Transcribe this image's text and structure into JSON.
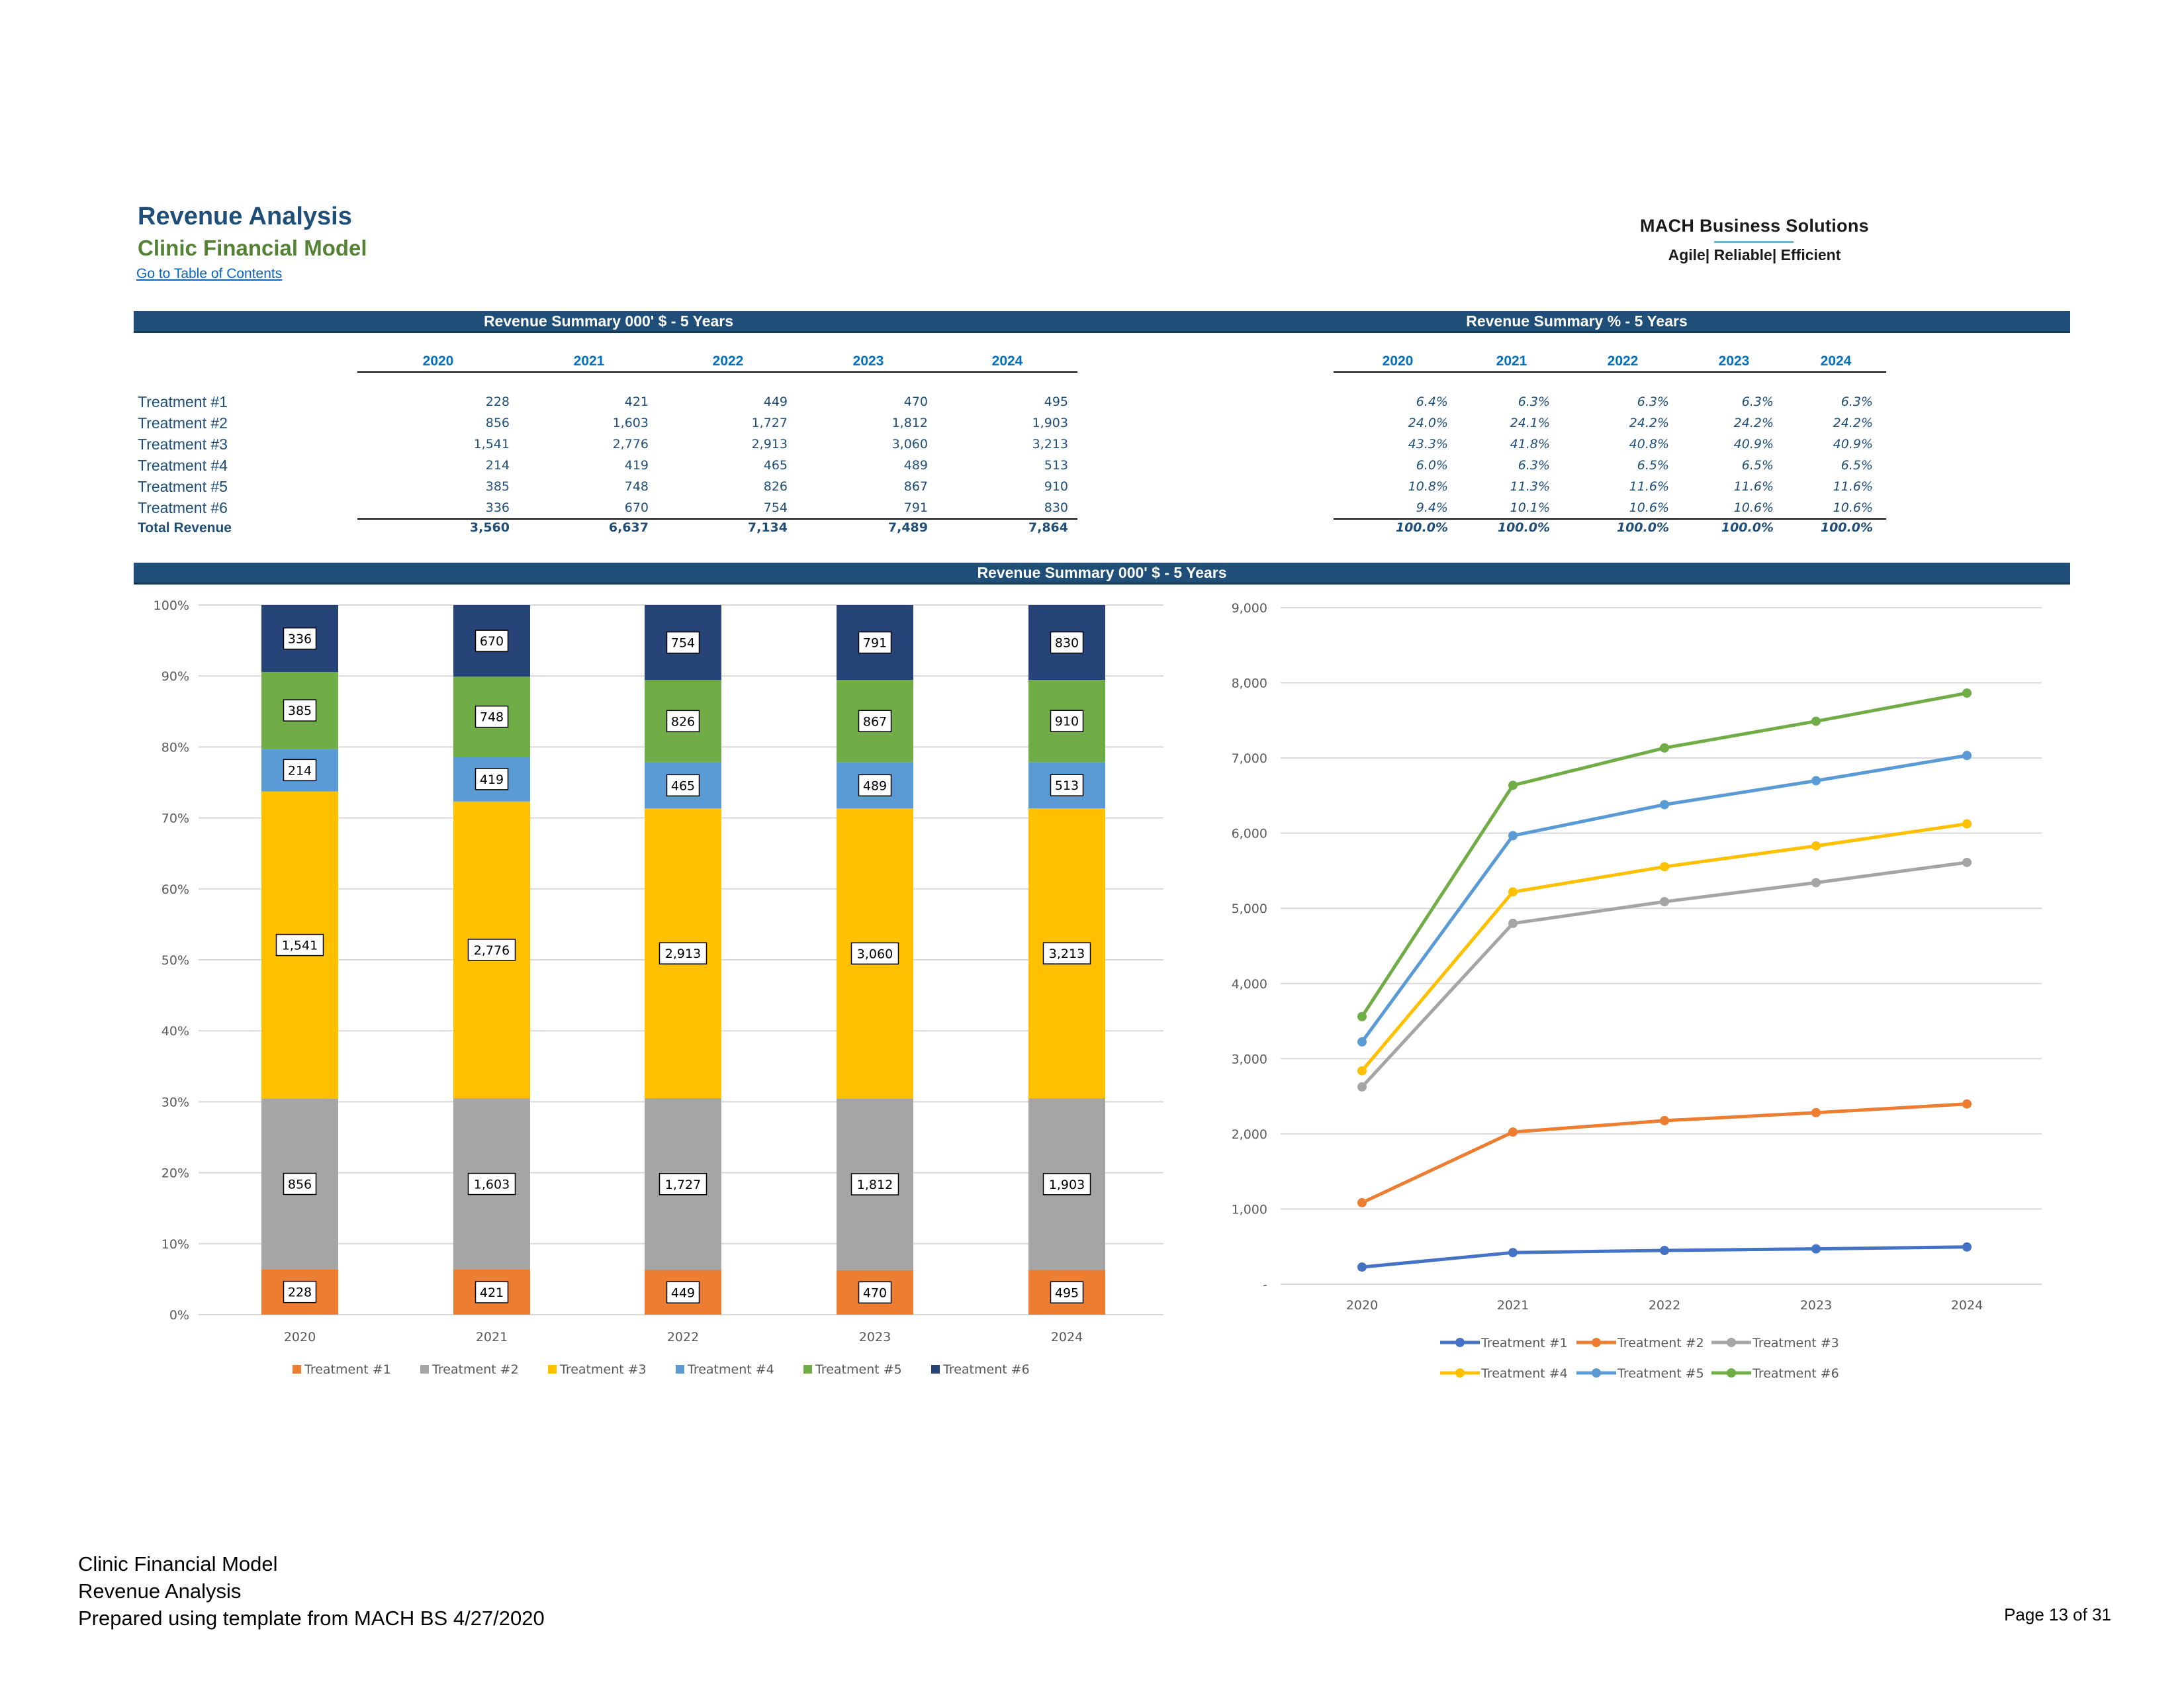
{
  "header": {
    "title": "Revenue Analysis",
    "subtitle": "Clinic Financial Model",
    "toc_link": "Go to Table of Contents",
    "logo_main": "MACH Business Solutions",
    "logo_tagline": "Agile| Reliable| Efficient"
  },
  "tables": {
    "abs_title": "Revenue Summary 000' $ - 5 Years",
    "pct_title": "Revenue Summary %  - 5 Years",
    "years": [
      "2020",
      "2021",
      "2022",
      "2023",
      "2024"
    ],
    "rows": [
      {
        "label": "Treatment #1",
        "values": [
          "228",
          "421",
          "449",
          "470",
          "495"
        ],
        "pcts": [
          "6.4%",
          "6.3%",
          "6.3%",
          "6.3%",
          "6.3%"
        ]
      },
      {
        "label": "Treatment #2",
        "values": [
          "856",
          "1,603",
          "1,727",
          "1,812",
          "1,903"
        ],
        "pcts": [
          "24.0%",
          "24.1%",
          "24.2%",
          "24.2%",
          "24.2%"
        ]
      },
      {
        "label": "Treatment #3",
        "values": [
          "1,541",
          "2,776",
          "2,913",
          "3,060",
          "3,213"
        ],
        "pcts": [
          "43.3%",
          "41.8%",
          "40.8%",
          "40.9%",
          "40.9%"
        ]
      },
      {
        "label": "Treatment #4",
        "values": [
          "214",
          "419",
          "465",
          "489",
          "513"
        ],
        "pcts": [
          "6.0%",
          "6.3%",
          "6.5%",
          "6.5%",
          "6.5%"
        ]
      },
      {
        "label": "Treatment #5",
        "values": [
          "385",
          "748",
          "826",
          "867",
          "910"
        ],
        "pcts": [
          "10.8%",
          "11.3%",
          "11.6%",
          "11.6%",
          "11.6%"
        ]
      },
      {
        "label": "Treatment #6",
        "values": [
          "336",
          "670",
          "754",
          "791",
          "830"
        ],
        "pcts": [
          "9.4%",
          "10.1%",
          "10.6%",
          "10.6%",
          "10.6%"
        ]
      }
    ],
    "total": {
      "label": "Total Revenue",
      "values": [
        "3,560",
        "6,637",
        "7,134",
        "7,489",
        "7,864"
      ],
      "pcts": [
        "100.0%",
        "100.0%",
        "100.0%",
        "100.0%",
        "100.0%"
      ]
    }
  },
  "charts_band_title": "Revenue Summary 000' $ - 5 Years",
  "chart_data": [
    {
      "type": "bar",
      "stacked": "percent",
      "categories": [
        "2020",
        "2021",
        "2022",
        "2023",
        "2024"
      ],
      "y_ticks": [
        "0%",
        "10%",
        "20%",
        "30%",
        "40%",
        "50%",
        "60%",
        "70%",
        "80%",
        "90%",
        "100%"
      ],
      "ylim": [
        0,
        100
      ],
      "grid": true,
      "legend": "bottom",
      "series": [
        {
          "name": "Treatment #1",
          "color": "#ed7d31",
          "values": [
            228,
            421,
            449,
            470,
            495
          ]
        },
        {
          "name": "Treatment #2",
          "color": "#a5a5a5",
          "values": [
            856,
            1603,
            1727,
            1812,
            1903
          ]
        },
        {
          "name": "Treatment #3",
          "color": "#ffc000",
          "values": [
            1541,
            2776,
            2913,
            3060,
            3213
          ]
        },
        {
          "name": "Treatment #4",
          "color": "#5b9bd5",
          "values": [
            214,
            419,
            465,
            489,
            513
          ]
        },
        {
          "name": "Treatment #5",
          "color": "#70ad47",
          "values": [
            385,
            748,
            826,
            867,
            910
          ]
        },
        {
          "name": "Treatment #6",
          "color": "#264478",
          "values": [
            336,
            670,
            754,
            791,
            830
          ]
        }
      ],
      "data_labels": [
        [
          "228",
          "421",
          "449",
          "470",
          "495"
        ],
        [
          "856",
          "1,603",
          "1,727",
          "1,812",
          "1,903"
        ],
        [
          "1,541",
          "2,776",
          "2,913",
          "3,060",
          "3,213"
        ],
        [
          "214",
          "419",
          "465",
          "489",
          "513"
        ],
        [
          "385",
          "748",
          "826",
          "867",
          "910"
        ],
        [
          "336",
          "670",
          "754",
          "791",
          "830"
        ]
      ]
    },
    {
      "type": "line",
      "categories": [
        "2020",
        "2021",
        "2022",
        "2023",
        "2024"
      ],
      "ylim": [
        0,
        9000
      ],
      "y_ticks": [
        "-",
        "1,000",
        "2,000",
        "3,000",
        "4,000",
        "5,000",
        "6,000",
        "7,000",
        "8,000",
        "9,000"
      ],
      "grid": true,
      "legend": "bottom",
      "series": [
        {
          "name": "Treatment #1",
          "color": "#4472c4",
          "values": [
            228,
            421,
            449,
            470,
            495
          ]
        },
        {
          "name": "Treatment #2",
          "color": "#ed7d31",
          "values": [
            1084,
            2024,
            2176,
            2282,
            2398
          ]
        },
        {
          "name": "Treatment #3",
          "color": "#a5a5a5",
          "values": [
            2625,
            4800,
            5089,
            5342,
            5611
          ]
        },
        {
          "name": "Treatment #4",
          "color": "#ffc000",
          "values": [
            2839,
            5219,
            5554,
            5831,
            6124
          ]
        },
        {
          "name": "Treatment #5",
          "color": "#5b9bd5",
          "values": [
            3224,
            5967,
            6380,
            6698,
            7034
          ]
        },
        {
          "name": "Treatment #6",
          "color": "#70ad47",
          "values": [
            3560,
            6637,
            7134,
            7489,
            7864
          ]
        }
      ]
    }
  ],
  "footer": {
    "line1": "Clinic Financial Model",
    "line2": "Revenue Analysis",
    "line3": "Prepared using template from MACH BS 4/27/2020",
    "page": "Page 13 of 31"
  }
}
